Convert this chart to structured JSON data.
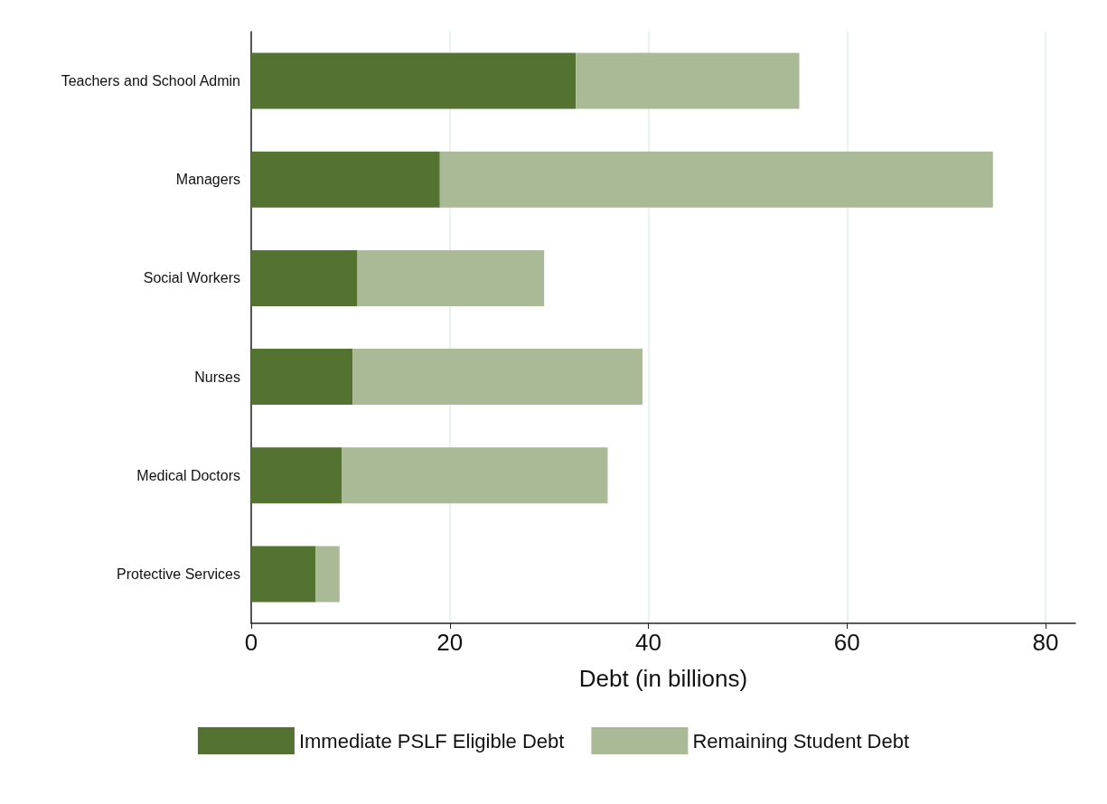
{
  "chart_data": {
    "type": "bar",
    "orientation": "horizontal",
    "stacked": true,
    "xlabel": "Debt (in billions)",
    "categories": [
      "Teachers and School Admin",
      "Managers",
      "Social Workers",
      "Nurses",
      "Medical Doctors",
      "Protective Services"
    ],
    "series": [
      {
        "name": "Immediate PSLF Eligible Debt",
        "color": "#557330",
        "values": [
          32.7,
          19.0,
          10.7,
          10.2,
          9.1,
          6.5
        ]
      },
      {
        "name": "Remaining Student Debt",
        "color": "#aaba97",
        "values": [
          22.5,
          55.7,
          18.8,
          29.2,
          26.8,
          2.4
        ]
      }
    ],
    "xlim": [
      0,
      83
    ],
    "xticks": [
      0,
      20,
      40,
      60,
      80
    ],
    "grid": "x",
    "legend": "bottom"
  }
}
